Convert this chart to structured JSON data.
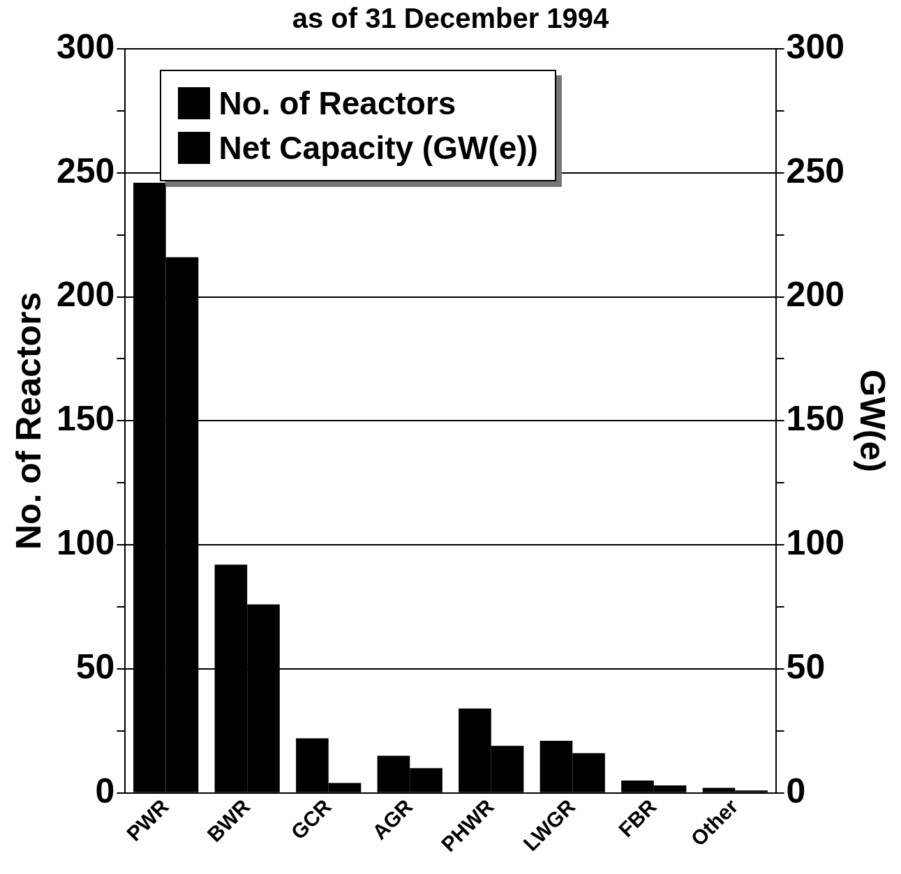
{
  "chart_data": {
    "type": "bar",
    "title": "as of 31 December 1994",
    "ylabel": "No. of Reactors",
    "y2label": "GW(e)",
    "categories": [
      "PWR",
      "BWR",
      "GCR",
      "AGR",
      "PHWR",
      "LWGR",
      "FBR",
      "Other"
    ],
    "series": [
      {
        "name": "No. of Reactors",
        "color": "#000000",
        "values": [
          246,
          92,
          22,
          15,
          34,
          21,
          5,
          2
        ]
      },
      {
        "name": "Net Capacity (GW(e))",
        "color": "#000000",
        "axis": "y2",
        "values": [
          216,
          76,
          4,
          10,
          19,
          16,
          3,
          1
        ]
      }
    ],
    "ylim": [
      0,
      300
    ],
    "yticks": [
      0,
      {
        "value": 25,
        "label": null
      },
      50,
      {
        "value": 75,
        "label": null
      },
      100,
      {
        "value": 125,
        "label": null
      },
      150,
      {
        "value": 175,
        "label": null
      },
      200,
      {
        "value": 225,
        "label": null
      },
      250,
      {
        "value": 275,
        "label": null
      },
      300
    ],
    "y2lim": [
      0,
      300
    ],
    "y2ticks": [
      0,
      {
        "value": 25,
        "label": null
      },
      50,
      {
        "value": 75,
        "label": null
      },
      100,
      {
        "value": 125,
        "label": null
      },
      150,
      {
        "value": 175,
        "label": null
      },
      200,
      {
        "value": 225,
        "label": null
      },
      250,
      {
        "value": 275,
        "label": null
      },
      300
    ],
    "grid": "y",
    "legend": "top"
  }
}
